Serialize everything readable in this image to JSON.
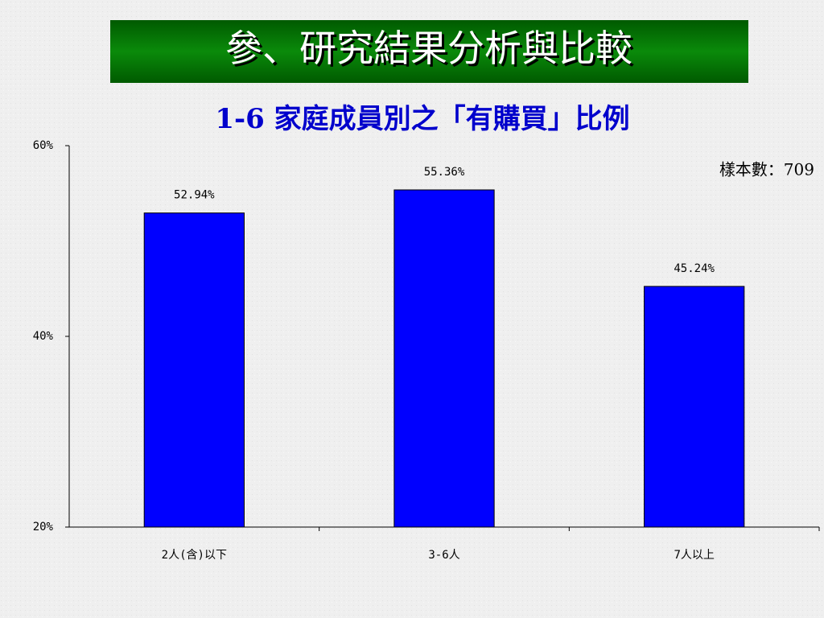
{
  "heading": "參、研究結果分析與比較",
  "chart_data": {
    "type": "bar",
    "title": "1-6 家庭成員別之「有購買」比例",
    "annotation": "樣本數：709",
    "categories": [
      "2人(含)以下",
      "3-6人",
      "7人以上"
    ],
    "values": [
      52.94,
      55.36,
      45.24
    ],
    "value_labels": [
      "52.94%",
      "55.36%",
      "45.24%"
    ],
    "color": "#0000ff",
    "ylim": [
      20,
      60
    ],
    "yticks": [
      {
        "value": 20,
        "label": "20%"
      },
      {
        "value": 40,
        "label": "40%"
      },
      {
        "value": 60,
        "label": "60%"
      }
    ],
    "grid": false
  }
}
